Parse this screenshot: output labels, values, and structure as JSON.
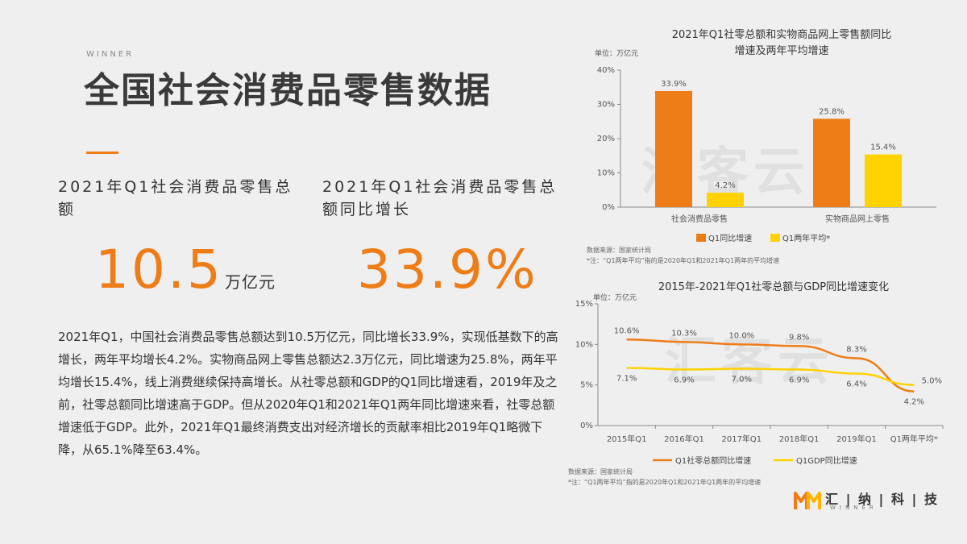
{
  "header": {
    "brand_small": "WINNER",
    "title": "全国社会消费品零售数据"
  },
  "stats": {
    "stat1_label": "2021年Q1社会消费品零售总额",
    "stat1_value": "10.5",
    "stat1_unit": "万亿元",
    "stat2_label": "2021年Q1社会消费品零售总额同比增长",
    "stat2_value": "33.9%"
  },
  "body_text": "2021年Q1，中国社会消费品零售总额达到10.5万亿元，同比增长33.9%，实现低基数下的高增长，两年平均增长4.2%。实物商品网上零售总额达2.3万亿元，同比增速为25.8%，两年平均增长15.4%，线上消费继续保持高增长。从社零总额和GDP的Q1同比增速看，2019年及之前，社零总额同比增速高于GDP。但从2020年Q1和2021年Q1两年同比增速来看，社零总额增速低于GDP。此外，2021年Q1最终消费支出对经济增长的贡献率相比2019年Q1略微下降，从65.1%降至63.4%。",
  "logo": {
    "text": "汇 | 纳 | 科 | 技",
    "sub": "WINNER"
  },
  "chart_data": [
    {
      "type": "bar",
      "title": "2021年Q1社零总额和实物商品网上零售额同比增速及两年平均增速",
      "title_line1": "2021年Q1社零总额和实物商品网上零售额同比",
      "title_line2": "增速及两年平均增速",
      "unit": "单位：万亿元",
      "categories": [
        "社会消费品零售",
        "实物商品网上零售"
      ],
      "series": [
        {
          "name": "Q1同比增速",
          "values": [
            33.9,
            25.8
          ],
          "labels": [
            "33.9%",
            "25.8%"
          ],
          "color": "#ee7d18"
        },
        {
          "name": "Q1两年平均*",
          "values": [
            4.2,
            15.4
          ],
          "labels": [
            "4.2%",
            "15.4%"
          ],
          "color": "#ffd200"
        }
      ],
      "ylim": [
        0,
        40
      ],
      "yticks": [
        0,
        10,
        20,
        30,
        40
      ],
      "ytick_labels": [
        "0%",
        "10%",
        "20%",
        "30%",
        "40%"
      ],
      "source": "数据来源：国家统计局",
      "note": "*注：“Q1两年平均”指的是2020年Q1和2021年Q1两年的平均增速",
      "watermark": "汇客云"
    },
    {
      "type": "line",
      "title": "2015年-2021年Q1社零总额与GDP同比增速变化",
      "unit": "单位：万亿元",
      "categories": [
        "2015年Q1",
        "2016年Q1",
        "2017年Q1",
        "2018年Q1",
        "2019年Q1",
        "Q1两年平均*"
      ],
      "series": [
        {
          "name": "Q1社零总额同比增速",
          "values": [
            10.6,
            10.3,
            10.0,
            9.8,
            8.3,
            4.2
          ],
          "labels": [
            "10.6%",
            "10.3%",
            "10.0%",
            "9.8%",
            "8.3%",
            "4.2%"
          ],
          "color": "#ee7d18"
        },
        {
          "name": "Q1GDP同比增速",
          "values": [
            7.1,
            6.9,
            7.0,
            6.9,
            6.4,
            5.0
          ],
          "labels": [
            "7.1%",
            "6.9%",
            "7.0%",
            "6.9%",
            "6.4%",
            "5.0%"
          ],
          "color": "#ffd200"
        }
      ],
      "ylim": [
        0,
        15
      ],
      "yticks": [
        0,
        5,
        10,
        15
      ],
      "ytick_labels": [
        "0%",
        "5%",
        "10%",
        "15%"
      ],
      "source": "数据来源：国家统计局",
      "note": "*注：“Q1两年平均”指的是2020年Q1和2021年Q1两年的平均增速",
      "watermark": "汇客云"
    }
  ]
}
